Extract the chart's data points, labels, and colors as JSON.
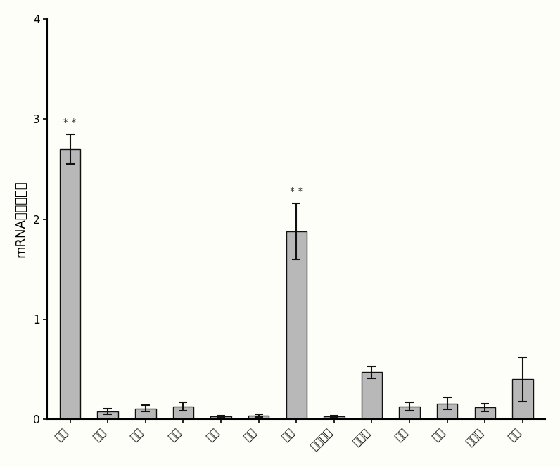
{
  "categories": [
    "垂体",
    "肺脏",
    "腹脂",
    "肝脏",
    "卵巢",
    "脾脏",
    "肾脏",
    "十二指肠",
    "下丘脑",
    "腺胃",
    "心脏",
    "骨骼肌",
    "胰腺"
  ],
  "values": [
    2.7,
    0.08,
    0.11,
    0.13,
    0.03,
    0.04,
    1.88,
    0.03,
    0.47,
    0.13,
    0.16,
    0.12,
    0.4
  ],
  "errors": [
    0.15,
    0.025,
    0.03,
    0.04,
    0.01,
    0.015,
    0.28,
    0.01,
    0.06,
    0.04,
    0.06,
    0.04,
    0.22
  ],
  "bar_color": "#b8b8b8",
  "bar_edgecolor": "#111111",
  "error_color": "#111111",
  "significance": [
    true,
    false,
    false,
    false,
    false,
    false,
    true,
    false,
    false,
    false,
    false,
    false,
    false
  ],
  "sig_label": "* *",
  "ylabel": "mRNA相对表达量",
  "ylim": [
    0,
    4
  ],
  "yticks": [
    0,
    1,
    2,
    3,
    4
  ],
  "background_color": "#fefef8",
  "bar_width": 0.55,
  "ylabel_fontsize": 13,
  "tick_fontsize": 11,
  "sig_fontsize": 10
}
